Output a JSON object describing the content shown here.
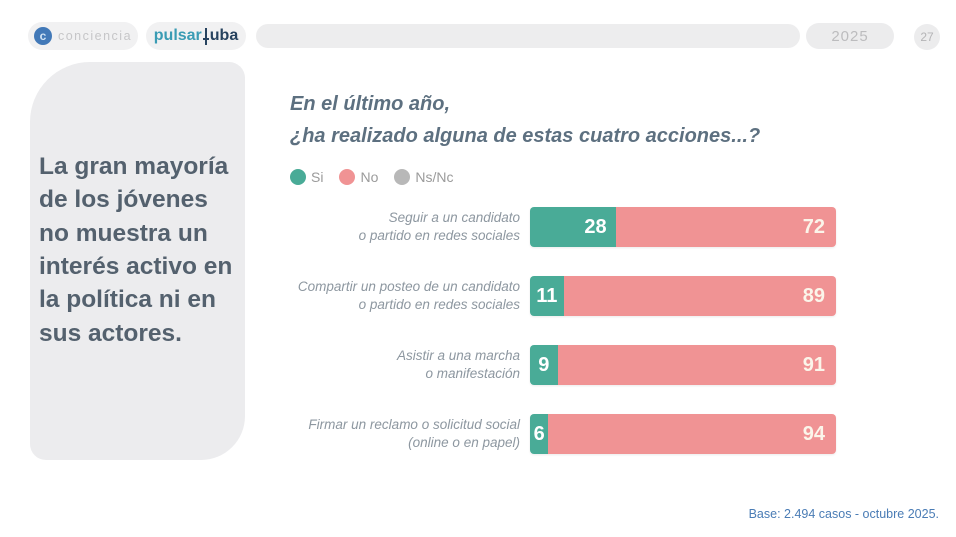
{
  "header": {
    "conciencia_label": "conciencia",
    "pulsar_label": "pulsar",
    "uba_label": "uba",
    "year": "2025",
    "page_number": "27"
  },
  "headline": "La gran mayoría de los jóvenes no muestra un interés activo en la política ni en sus actores.",
  "chart_data": {
    "type": "bar",
    "orientation": "horizontal",
    "stacked": true,
    "title_line1": "En el último año,",
    "title_line2": "¿ha realizado alguna de estas cuatro acciones...?",
    "legend_position": "top-left",
    "value_range": [
      0,
      100
    ],
    "legend": [
      {
        "label": "Si",
        "color": "#49ab97"
      },
      {
        "label": "No",
        "color": "#f09394"
      },
      {
        "label": "Ns/Nc",
        "color": "#b8b8b8"
      }
    ],
    "categories": [
      [
        "Seguir a un candidato",
        "o partido en redes sociales"
      ],
      [
        "Compartir un posteo de un candidato",
        "o partido en redes sociales"
      ],
      [
        "Asistir a una marcha",
        "o manifestación"
      ],
      [
        "Firmar un reclamo o solicitud social",
        "(online o en papel)"
      ]
    ],
    "series": [
      {
        "name": "Si",
        "values": [
          28,
          11,
          9,
          6
        ]
      },
      {
        "name": "No",
        "values": [
          72,
          89,
          91,
          94
        ]
      },
      {
        "name": "Ns/Nc",
        "values": [
          0,
          0,
          0,
          0
        ]
      }
    ]
  },
  "footer": {
    "base_note": "Base: 2.494 casos - octubre 2025."
  },
  "colors": {
    "si": "#49ab97",
    "no": "#f09394",
    "nsnc": "#b8b8b8",
    "accent_blue": "#4a7cb5",
    "panel_bg": "#ececee",
    "headline_text": "#54616e"
  }
}
